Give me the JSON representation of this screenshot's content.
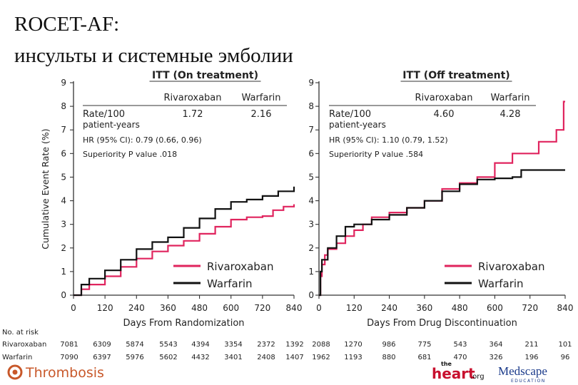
{
  "slide": {
    "title_line1": "ROCET-AF:",
    "title_line2": "инсульты и системные эмболии"
  },
  "y_axis_label": "Cumulative Event Rate (%)",
  "colors": {
    "rivaroxaban": "#e0245e",
    "warfarin": "#111111"
  },
  "chart_data": [
    {
      "type": "line",
      "panel": "left",
      "title": "ITT (On treatment)",
      "xlabel": "Days From Randomization",
      "ylabel": "Cumulative Event Rate (%)",
      "xlim": [
        0,
        840
      ],
      "ylim": [
        0,
        9
      ],
      "xticks": [
        0,
        120,
        240,
        360,
        480,
        600,
        720,
        840
      ],
      "yticks": [
        0,
        1,
        2,
        3,
        4,
        5,
        6,
        7,
        8,
        9
      ],
      "table": {
        "header_rivaroxaban": "Rivaroxaban",
        "header_warfarin": "Warfarin",
        "rate_label": "Rate/100",
        "rate_label2": "patient-years",
        "rate_rivaroxaban": "1.72",
        "rate_warfarin": "2.16",
        "hr": "HR (95% CI): 0.79 (0.66, 0.96)",
        "p": "Superiority P value .018"
      },
      "legend": [
        "Rivaroxaban",
        "Warfarin"
      ],
      "series": [
        {
          "name": "Rivaroxaban",
          "color": "#e0245e",
          "points": [
            [
              0,
              0
            ],
            [
              30,
              0.25
            ],
            [
              60,
              0.45
            ],
            [
              120,
              0.8
            ],
            [
              180,
              1.2
            ],
            [
              240,
              1.55
            ],
            [
              300,
              1.85
            ],
            [
              360,
              2.1
            ],
            [
              420,
              2.3
            ],
            [
              480,
              2.6
            ],
            [
              540,
              2.9
            ],
            [
              600,
              3.2
            ],
            [
              660,
              3.3
            ],
            [
              720,
              3.35
            ],
            [
              760,
              3.6
            ],
            [
              800,
              3.75
            ],
            [
              840,
              3.85
            ]
          ]
        },
        {
          "name": "Warfarin",
          "color": "#111111",
          "points": [
            [
              0,
              0
            ],
            [
              30,
              0.45
            ],
            [
              60,
              0.7
            ],
            [
              120,
              1.05
            ],
            [
              180,
              1.5
            ],
            [
              240,
              1.95
            ],
            [
              300,
              2.25
            ],
            [
              360,
              2.45
            ],
            [
              420,
              2.85
            ],
            [
              480,
              3.25
            ],
            [
              540,
              3.65
            ],
            [
              600,
              3.95
            ],
            [
              660,
              4.05
            ],
            [
              720,
              4.2
            ],
            [
              780,
              4.4
            ],
            [
              840,
              4.6
            ]
          ]
        }
      ]
    },
    {
      "type": "line",
      "panel": "right",
      "title": "ITT (Off treatment)",
      "xlabel": "Days From Drug Discontinuation",
      "ylabel": "",
      "xlim": [
        0,
        840
      ],
      "ylim": [
        0,
        9
      ],
      "xticks": [
        0,
        120,
        240,
        360,
        480,
        600,
        720,
        840
      ],
      "yticks": [
        0,
        1,
        2,
        3,
        4,
        5,
        6,
        7,
        8,
        9
      ],
      "table": {
        "header_rivaroxaban": "Rivaroxaban",
        "header_warfarin": "Warfarin",
        "rate_label": "Rate/100",
        "rate_label2": "patient-years",
        "rate_rivaroxaban": "4.60",
        "rate_warfarin": "4.28",
        "hr": "HR (95% CI): 1.10 (0.79, 1.52)",
        "p": "Superiority P value .584"
      },
      "legend": [
        "Rivaroxaban",
        "Warfarin"
      ],
      "series": [
        {
          "name": "Rivaroxaban",
          "color": "#e0245e",
          "points": [
            [
              0,
              0
            ],
            [
              5,
              0.8
            ],
            [
              10,
              1.3
            ],
            [
              20,
              1.7
            ],
            [
              30,
              1.95
            ],
            [
              60,
              2.2
            ],
            [
              90,
              2.5
            ],
            [
              120,
              2.75
            ],
            [
              150,
              3.0
            ],
            [
              180,
              3.3
            ],
            [
              240,
              3.5
            ],
            [
              300,
              3.7
            ],
            [
              360,
              4.0
            ],
            [
              420,
              4.5
            ],
            [
              480,
              4.75
            ],
            [
              540,
              5.0
            ],
            [
              600,
              5.6
            ],
            [
              660,
              6.0
            ],
            [
              720,
              6.0
            ],
            [
              750,
              6.5
            ],
            [
              800,
              6.5
            ],
            [
              810,
              7.0
            ],
            [
              830,
              7.0
            ],
            [
              835,
              8.2
            ],
            [
              840,
              8.2
            ]
          ]
        },
        {
          "name": "Warfarin",
          "color": "#111111",
          "points": [
            [
              0,
              0
            ],
            [
              5,
              1.0
            ],
            [
              10,
              1.5
            ],
            [
              30,
              2.0
            ],
            [
              60,
              2.5
            ],
            [
              90,
              2.9
            ],
            [
              120,
              3.0
            ],
            [
              180,
              3.2
            ],
            [
              240,
              3.4
            ],
            [
              300,
              3.7
            ],
            [
              360,
              4.0
            ],
            [
              420,
              4.4
            ],
            [
              480,
              4.7
            ],
            [
              540,
              4.9
            ],
            [
              600,
              4.95
            ],
            [
              660,
              5.0
            ],
            [
              690,
              5.3
            ],
            [
              760,
              5.3
            ],
            [
              840,
              5.3
            ]
          ]
        }
      ]
    }
  ],
  "at_risk": {
    "title": "No. at risk",
    "rows": [
      {
        "label": "Rivaroxaban",
        "left": [
          "7081",
          "6309",
          "5874",
          "5543",
          "4394",
          "3354",
          "2372",
          "1392"
        ],
        "right": [
          "2088",
          "1270",
          "986",
          "775",
          "543",
          "364",
          "211",
          "101"
        ]
      },
      {
        "label": "Warfarin",
        "left": [
          "7090",
          "6397",
          "5976",
          "5602",
          "4432",
          "3401",
          "2408",
          "1407"
        ],
        "right": [
          "1962",
          "1193",
          "880",
          "681",
          "470",
          "326",
          "196",
          "96"
        ]
      }
    ]
  },
  "footer": {
    "brand": "Thrombosis",
    "logo1_top": "the",
    "logo1_main": "heart",
    "logo1_suffix": ".org",
    "logo2_main": "Medscape",
    "logo2_sub": "EDUCATION"
  }
}
